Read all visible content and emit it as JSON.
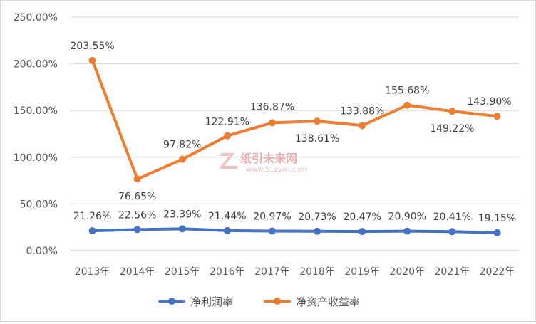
{
  "chart_data": {
    "type": "line",
    "title": "",
    "xlabel": "",
    "ylabel": "",
    "categories": [
      "2013年",
      "2014年",
      "2015年",
      "2016年",
      "2017年",
      "2018年",
      "2019年",
      "2020年",
      "2021年",
      "2022年"
    ],
    "ylim": [
      0,
      250
    ],
    "yticks": [
      0,
      50,
      100,
      150,
      200,
      250
    ],
    "ytick_labels": [
      "0.00%",
      "50.00%",
      "100.00%",
      "150.00%",
      "200.00%",
      "250.00%"
    ],
    "grid": true,
    "legend": "bottom",
    "series": [
      {
        "name": "净利润率",
        "color": "#4472c4",
        "values": [
          21.26,
          22.56,
          23.39,
          21.44,
          20.97,
          20.73,
          20.47,
          20.9,
          20.41,
          19.15
        ],
        "labels": [
          "21.26%",
          "22.56%",
          "23.39%",
          "21.44%",
          "20.97%",
          "20.73%",
          "20.47%",
          "20.90%",
          "20.41%",
          "19.15%"
        ]
      },
      {
        "name": "净资产收益率",
        "color": "#ed7d31",
        "values": [
          203.55,
          76.65,
          97.82,
          122.91,
          136.87,
          138.61,
          133.88,
          155.68,
          149.22,
          143.9
        ],
        "labels": [
          "203.55%",
          "76.65%",
          "97.82%",
          "122.91%",
          "136.87%",
          "138.61%",
          "133.88%",
          "155.68%",
          "149.22%",
          "143.90%"
        ]
      }
    ]
  },
  "watermark": {
    "text": "纸引未来网",
    "url": "www.51zywl.com"
  }
}
